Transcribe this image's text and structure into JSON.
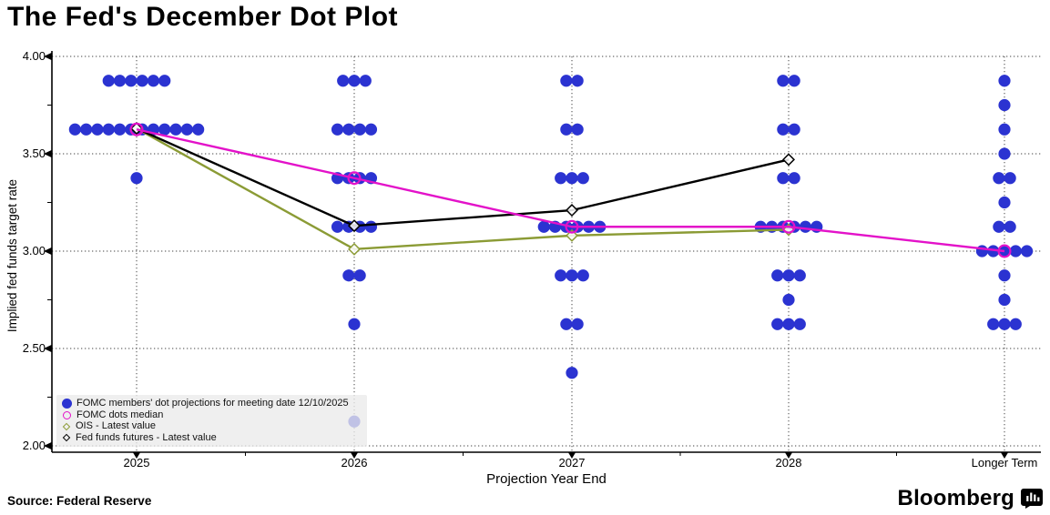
{
  "title": "The Fed's December Dot Plot",
  "source": "Source: Federal Reserve",
  "branding": {
    "name": "Bloomberg",
    "icon": "bloomberg-terminal-icon"
  },
  "legend": {
    "position": "lower-left",
    "items": [
      {
        "label": "FOMC members' dot projections for meeting date 12/10/2025",
        "marker": "filled-circle",
        "color": "#2b33d1"
      },
      {
        "label": "FOMC dots median",
        "marker": "open-circle",
        "color": "#e312c9"
      },
      {
        "label": "OIS - Latest value",
        "marker": "open-diamond",
        "color": "#8b9b35"
      },
      {
        "label": "Fed funds futures - Latest value",
        "marker": "open-diamond",
        "color": "#000000"
      }
    ]
  },
  "chart_data": {
    "type": "scatter",
    "title": "The Fed's December Dot Plot",
    "xlabel": "Projection Year End",
    "ylabel": "Implied fed funds target rate",
    "ylim": [
      2.0,
      4.0
    ],
    "yticks": [
      4.0,
      3.5,
      3.0,
      2.5,
      2.0
    ],
    "grid": "dotted horizontal and vertical gridlines",
    "legend_position": "lower left",
    "categories": [
      "2025",
      "2026",
      "2027",
      "2028",
      "Longer Term"
    ],
    "dot_series": {
      "name": "FOMC members' dot projections for meeting date 12/10/2025",
      "color": "#2b33d1",
      "unit": "percent",
      "data": [
        {
          "category": "2025",
          "dots": [
            {
              "value": 3.875,
              "count": 6
            },
            {
              "value": 3.625,
              "count": 12
            },
            {
              "value": 3.375,
              "count": 1
            }
          ]
        },
        {
          "category": "2026",
          "dots": [
            {
              "value": 3.875,
              "count": 3
            },
            {
              "value": 3.625,
              "count": 4
            },
            {
              "value": 3.375,
              "count": 4
            },
            {
              "value": 3.125,
              "count": 4
            },
            {
              "value": 2.875,
              "count": 2
            },
            {
              "value": 2.625,
              "count": 1
            },
            {
              "value": 2.125,
              "count": 1
            }
          ]
        },
        {
          "category": "2027",
          "dots": [
            {
              "value": 3.875,
              "count": 2
            },
            {
              "value": 3.625,
              "count": 2
            },
            {
              "value": 3.375,
              "count": 3
            },
            {
              "value": 3.125,
              "count": 6
            },
            {
              "value": 2.875,
              "count": 3
            },
            {
              "value": 2.625,
              "count": 2
            },
            {
              "value": 2.375,
              "count": 1
            }
          ]
        },
        {
          "category": "2028",
          "dots": [
            {
              "value": 3.875,
              "count": 2
            },
            {
              "value": 3.625,
              "count": 2
            },
            {
              "value": 3.375,
              "count": 2
            },
            {
              "value": 3.125,
              "count": 6
            },
            {
              "value": 2.875,
              "count": 3
            },
            {
              "value": 2.75,
              "count": 1
            },
            {
              "value": 2.625,
              "count": 3
            }
          ]
        },
        {
          "category": "Longer Term",
          "dots": [
            {
              "value": 3.875,
              "count": 1
            },
            {
              "value": 3.75,
              "count": 1
            },
            {
              "value": 3.625,
              "count": 1
            },
            {
              "value": 3.5,
              "count": 1
            },
            {
              "value": 3.375,
              "count": 2
            },
            {
              "value": 3.25,
              "count": 1
            },
            {
              "value": 3.125,
              "count": 2
            },
            {
              "value": 3.0,
              "count": 5
            },
            {
              "value": 2.875,
              "count": 1
            },
            {
              "value": 2.75,
              "count": 1
            },
            {
              "value": 2.625,
              "count": 3
            }
          ]
        }
      ]
    },
    "series": [
      {
        "name": "FOMC dots median",
        "color": "#e312c9",
        "marker": "open-circle",
        "categories": [
          "2025",
          "2026",
          "2027",
          "2028",
          "Longer Term"
        ],
        "values": [
          3.625,
          3.375,
          3.125,
          3.125,
          3.0
        ]
      },
      {
        "name": "OIS - Latest value",
        "color": "#8b9b35",
        "marker": "open-diamond",
        "categories": [
          "2025",
          "2026",
          "2027",
          "2028"
        ],
        "values": [
          3.63,
          3.01,
          3.08,
          3.11
        ]
      },
      {
        "name": "Fed funds futures - Latest value",
        "color": "#000000",
        "marker": "open-diamond",
        "categories": [
          "2025",
          "2026",
          "2027",
          "2028"
        ],
        "values": [
          3.63,
          3.13,
          3.21,
          3.47
        ]
      }
    ]
  }
}
